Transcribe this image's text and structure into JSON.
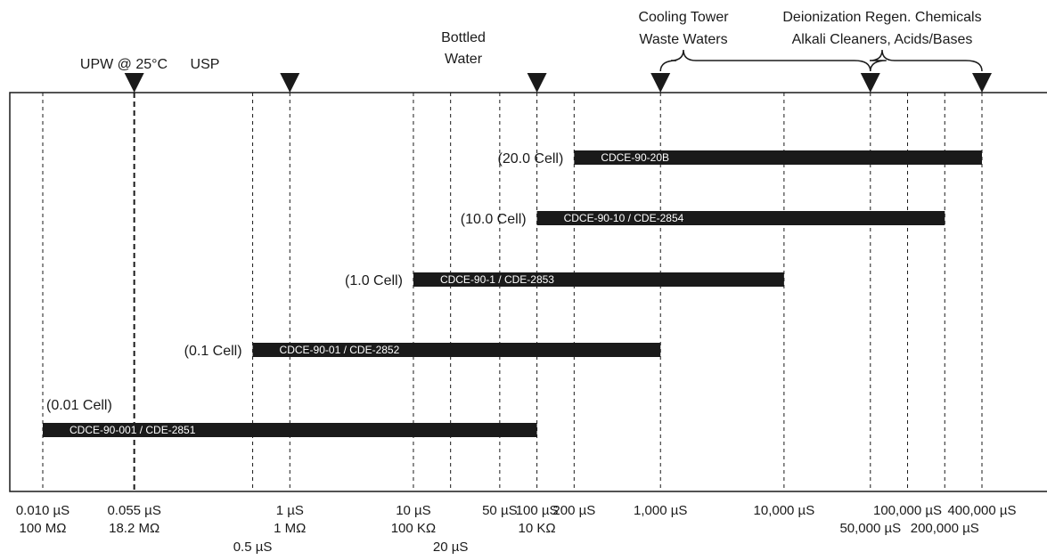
{
  "chart_data": {
    "type": "bar",
    "x_scale": "log",
    "x_unit": "µS",
    "xlim": [
      0.01,
      400000
    ],
    "grid": "vertical dashed lines at tick values",
    "ticks": [
      {
        "value": 0.01,
        "labels": [
          "0.010 µS",
          "100 MΩ"
        ]
      },
      {
        "value": 0.055,
        "labels": [
          "0.055 µS",
          "18.2 MΩ"
        ],
        "style": "bold"
      },
      {
        "value": 0.5,
        "labels": [
          "0.5 µS"
        ],
        "row": "low"
      },
      {
        "value": 1,
        "labels": [
          "1 µS",
          "1 MΩ"
        ]
      },
      {
        "value": 10,
        "labels": [
          "10 µS",
          "100 KΩ"
        ]
      },
      {
        "value": 20,
        "labels": [
          "20 µS"
        ],
        "row": "low"
      },
      {
        "value": 50,
        "labels": [
          "50 µS"
        ]
      },
      {
        "value": 100,
        "labels": [
          "100 µS",
          "10 KΩ"
        ]
      },
      {
        "value": 200,
        "labels": [
          "200 µS"
        ]
      },
      {
        "value": 1000,
        "labels": [
          "1,000 µS"
        ]
      },
      {
        "value": 10000,
        "labels": [
          "10,000 µS"
        ]
      },
      {
        "value": 50000,
        "labels": [
          "50,000 µS"
        ],
        "row": "mid"
      },
      {
        "value": 100000,
        "labels": [
          "100,000 µS"
        ]
      },
      {
        "value": 200000,
        "labels": [
          "200,000 µS"
        ],
        "row": "mid"
      },
      {
        "value": 400000,
        "labels": [
          "400,000 µS"
        ]
      }
    ],
    "bars": [
      {
        "cell": "(20.0 Cell)",
        "model": "CDCE-90-20B",
        "min": 200,
        "max": 400000
      },
      {
        "cell": "(10.0 Cell)",
        "model": "CDCE-90-10 / CDE-2854",
        "min": 100,
        "max": 200000
      },
      {
        "cell": "(1.0 Cell)",
        "model": "CDCE-90-1 / CDE-2853",
        "min": 10,
        "max": 10000
      },
      {
        "cell": "(0.1 Cell)",
        "model": "CDCE-90-01 / CDE-2852",
        "min": 0.5,
        "max": 1000
      },
      {
        "cell": "(0.01 Cell)",
        "model": "CDCE-90-001 / CDE-2851",
        "min": 0.01,
        "max": 100
      }
    ],
    "markers": [
      {
        "value": 0.055,
        "label": [
          "UPW @ 25°C"
        ]
      },
      {
        "value": 1,
        "label": [
          "USP"
        ]
      },
      {
        "value": 100,
        "label": [
          "Bottled",
          "Water"
        ]
      },
      {
        "value": 1000,
        "label": []
      },
      {
        "value": 50000,
        "label": []
      },
      {
        "value": 400000,
        "label": []
      }
    ],
    "ranges": [
      {
        "from": 1000,
        "to": 50000,
        "label": [
          "Cooling Tower",
          "Waste Waters"
        ]
      },
      {
        "from": 50000,
        "to": 400000,
        "label": [
          "Deionization Regen. Chemicals",
          "Alkali Cleaners, Acids/Bases"
        ]
      }
    ]
  }
}
